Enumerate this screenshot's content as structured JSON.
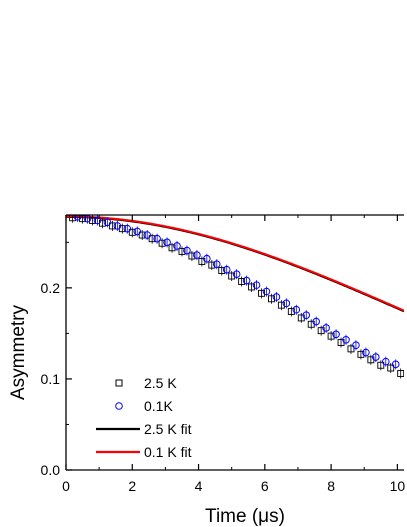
{
  "chart_data": {
    "type": "scatter",
    "xlabel": "Time (μs)",
    "ylabel": "Asymmetry",
    "xlim": [
      0,
      10.2
    ],
    "ylim": [
      0,
      0.28
    ],
    "xticks": [
      0,
      2,
      4,
      6,
      8,
      10
    ],
    "xtick_labels": [
      "0",
      "2",
      "4",
      "6",
      "8",
      "10"
    ],
    "yticks": [
      0.0,
      0.1,
      0.2
    ],
    "ytick_labels": [
      "0.0",
      "0.1",
      "0.2"
    ],
    "grid": false,
    "legend_position": "bottom-left",
    "series": [
      {
        "name": "2.5 K",
        "style": "open-square",
        "color": "#000000",
        "x": [
          0.2,
          0.5,
          0.8,
          1.1,
          1.4,
          1.7,
          2.0,
          2.3,
          2.6,
          2.9,
          3.2,
          3.5,
          3.8,
          4.1,
          4.4,
          4.7,
          5.0,
          5.3,
          5.6,
          5.9,
          6.2,
          6.5,
          6.8,
          7.1,
          7.4,
          7.7,
          8.0,
          8.3,
          8.6,
          8.9,
          9.2,
          9.5,
          9.8,
          10.1
        ],
        "y": [
          0.277,
          0.276,
          0.274,
          0.271,
          0.268,
          0.265,
          0.261,
          0.258,
          0.254,
          0.249,
          0.244,
          0.24,
          0.235,
          0.229,
          0.225,
          0.219,
          0.213,
          0.207,
          0.201,
          0.194,
          0.188,
          0.181,
          0.174,
          0.167,
          0.16,
          0.153,
          0.147,
          0.14,
          0.133,
          0.127,
          0.121,
          0.115,
          0.112,
          0.106
        ]
      },
      {
        "name": "0.1K",
        "style": "open-circle",
        "color": "#0000ff",
        "x": [
          0.35,
          0.65,
          0.95,
          1.25,
          1.55,
          1.85,
          2.15,
          2.45,
          2.75,
          3.05,
          3.35,
          3.65,
          3.95,
          4.25,
          4.55,
          4.85,
          5.15,
          5.45,
          5.75,
          6.05,
          6.35,
          6.65,
          6.95,
          7.25,
          7.55,
          7.85,
          8.15,
          8.45,
          8.75,
          9.05,
          9.35,
          9.65,
          9.95
        ],
        "y": [
          0.278,
          0.276,
          0.274,
          0.272,
          0.268,
          0.265,
          0.262,
          0.258,
          0.254,
          0.25,
          0.246,
          0.241,
          0.236,
          0.232,
          0.226,
          0.22,
          0.215,
          0.208,
          0.203,
          0.196,
          0.19,
          0.183,
          0.176,
          0.17,
          0.163,
          0.156,
          0.149,
          0.143,
          0.137,
          0.129,
          0.124,
          0.119,
          0.116
        ]
      },
      {
        "name": "2.5 K fit",
        "style": "line",
        "color": "#000000",
        "model": "gaussian",
        "a0": 0.278,
        "sigma": 0.0947
      },
      {
        "name": "0.1 K fit",
        "style": "line",
        "color": "#ff0000",
        "model": "gaussian",
        "a0": 0.2785,
        "sigma": 0.0945
      }
    ]
  }
}
